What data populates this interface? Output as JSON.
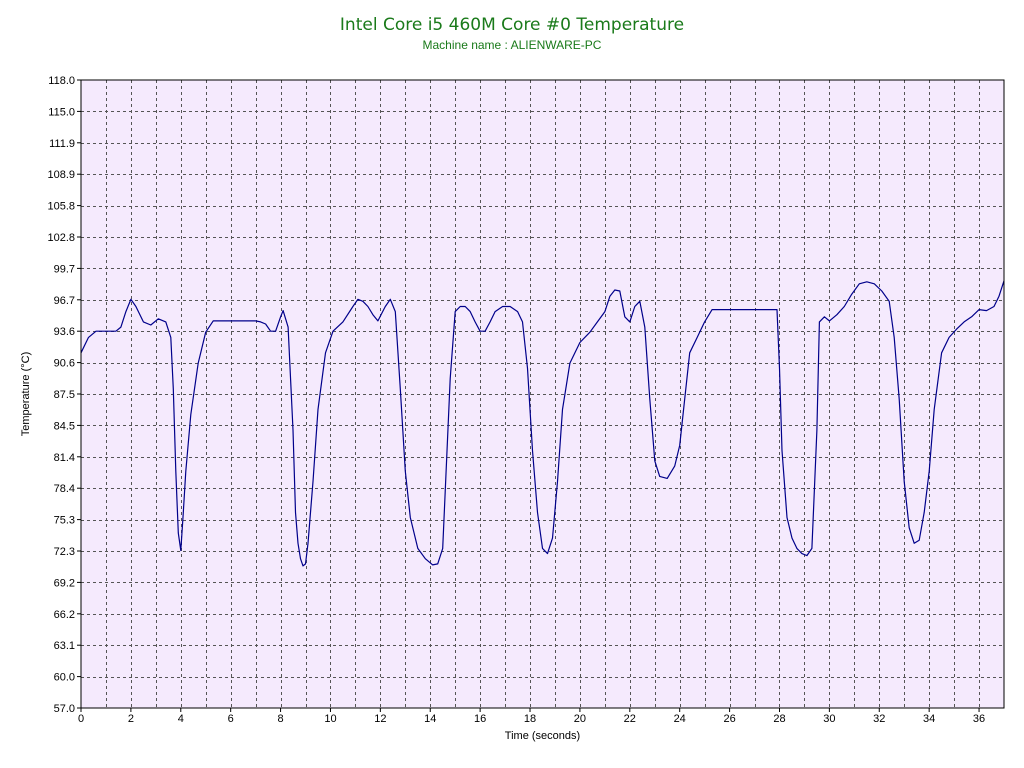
{
  "chart_data": {
    "type": "line",
    "title": "Intel Core i5 460M Core #0 Temperature",
    "subtitle": "Machine name : ALIENWARE-PC",
    "xlabel": "Time (seconds)",
    "ylabel": "Temperature (°C)",
    "xlim": [
      0,
      37
    ],
    "ylim": [
      57.0,
      118.0
    ],
    "x_ticks": [
      0,
      2,
      4,
      6,
      8,
      10,
      12,
      14,
      16,
      18,
      20,
      22,
      24,
      26,
      28,
      30,
      32,
      34,
      36
    ],
    "y_ticks": [
      "57.0",
      "60.0",
      "63.1",
      "66.2",
      "69.2",
      "72.3",
      "75.3",
      "78.4",
      "81.4",
      "84.5",
      "87.5",
      "90.6",
      "93.6",
      "96.7",
      "99.7",
      "102.8",
      "105.8",
      "108.9",
      "111.9",
      "115.0",
      "118.0"
    ],
    "grid": true,
    "legend": "none",
    "colors": {
      "plot_background": "#f5eafd",
      "grid": "#555555",
      "line": "#00008b",
      "title": "#1a7a1a",
      "axis": "#000000"
    },
    "series": [
      {
        "x": [
          0,
          0.3,
          0.6,
          1.0,
          1.4,
          1.6,
          1.8,
          2.0,
          2.2,
          2.5,
          2.8,
          3.1,
          3.4,
          3.6,
          3.7,
          3.8,
          3.9,
          4.0,
          4.1,
          4.2,
          4.4,
          4.7,
          5.0,
          5.3,
          5.6,
          6.0,
          7.0,
          7.2,
          7.4,
          7.6,
          7.8,
          8.0,
          8.1,
          8.3,
          8.5,
          8.6,
          8.7,
          8.8,
          8.9,
          9.0,
          9.1,
          9.3,
          9.5,
          9.8,
          10.1,
          10.5,
          10.9,
          11.1,
          11.3,
          11.5,
          11.7,
          11.9,
          12.2,
          12.4,
          12.6,
          12.8,
          13.0,
          13.2,
          13.5,
          13.8,
          14.1,
          14.3,
          14.5,
          14.6,
          14.8,
          15.0,
          15.2,
          15.4,
          15.6,
          15.8,
          16.0,
          16.2,
          16.4,
          16.6,
          16.9,
          17.2,
          17.5,
          17.7,
          17.9,
          18.1,
          18.3,
          18.5,
          18.7,
          18.9,
          19.1,
          19.3,
          19.6,
          20.0,
          20.4,
          20.7,
          21.0,
          21.2,
          21.4,
          21.6,
          21.8,
          22.0,
          22.2,
          22.4,
          22.6,
          22.8,
          23.0,
          23.2,
          23.5,
          23.8,
          24.0,
          24.2,
          24.4,
          24.7,
          25.0,
          25.3,
          26.0,
          27.0,
          27.8,
          27.9,
          28.0,
          28.1,
          28.3,
          28.5,
          28.7,
          28.9,
          29.1,
          29.3,
          29.5,
          29.6,
          29.8,
          30.0,
          30.3,
          30.6,
          30.9,
          31.2,
          31.5,
          31.8,
          32.1,
          32.4,
          32.6,
          32.8,
          33.0,
          33.2,
          33.4,
          33.6,
          33.8,
          34.0,
          34.2,
          34.5,
          34.8,
          35.1,
          35.4,
          35.7,
          36.0,
          36.3,
          36.6,
          36.8,
          37.0
        ],
        "y": [
          91.5,
          93.0,
          93.6,
          93.6,
          93.6,
          94.0,
          95.5,
          96.7,
          96.0,
          94.5,
          94.2,
          94.8,
          94.5,
          93.0,
          88.0,
          80.0,
          74.0,
          72.3,
          76.0,
          80.0,
          85.5,
          90.5,
          93.5,
          94.6,
          94.6,
          94.6,
          94.6,
          94.5,
          94.3,
          93.6,
          93.6,
          95.0,
          95.6,
          94.0,
          84.0,
          76.0,
          73.0,
          71.5,
          70.8,
          71.0,
          73.0,
          79.0,
          86.0,
          91.5,
          93.6,
          94.5,
          96.0,
          96.7,
          96.5,
          96.0,
          95.2,
          94.6,
          96.0,
          96.7,
          95.5,
          88.0,
          80.0,
          75.5,
          72.5,
          71.5,
          70.9,
          71.0,
          72.5,
          78.0,
          89.0,
          95.5,
          96.0,
          96.0,
          95.5,
          94.5,
          93.6,
          93.6,
          94.5,
          95.5,
          96.0,
          96.0,
          95.5,
          94.5,
          90.0,
          82.0,
          76.0,
          72.5,
          72.0,
          73.5,
          79.0,
          86.0,
          90.5,
          92.5,
          93.5,
          94.5,
          95.5,
          97.0,
          97.6,
          97.5,
          95.0,
          94.5,
          96.0,
          96.5,
          94.0,
          87.0,
          81.0,
          79.5,
          79.3,
          80.5,
          82.5,
          87.0,
          91.5,
          93.0,
          94.5,
          95.7,
          95.7,
          95.7,
          95.7,
          95.7,
          90.0,
          82.0,
          75.5,
          73.5,
          72.5,
          72.0,
          71.8,
          72.5,
          84.0,
          94.5,
          95.0,
          94.6,
          95.2,
          96.0,
          97.2,
          98.2,
          98.4,
          98.2,
          97.5,
          96.5,
          93.0,
          87.0,
          79.0,
          74.5,
          73.0,
          73.3,
          76.0,
          80.0,
          86.0,
          91.5,
          93.0,
          93.8,
          94.5,
          95.0,
          95.7,
          95.6,
          96.0,
          97.0,
          98.5
        ]
      }
    ]
  }
}
